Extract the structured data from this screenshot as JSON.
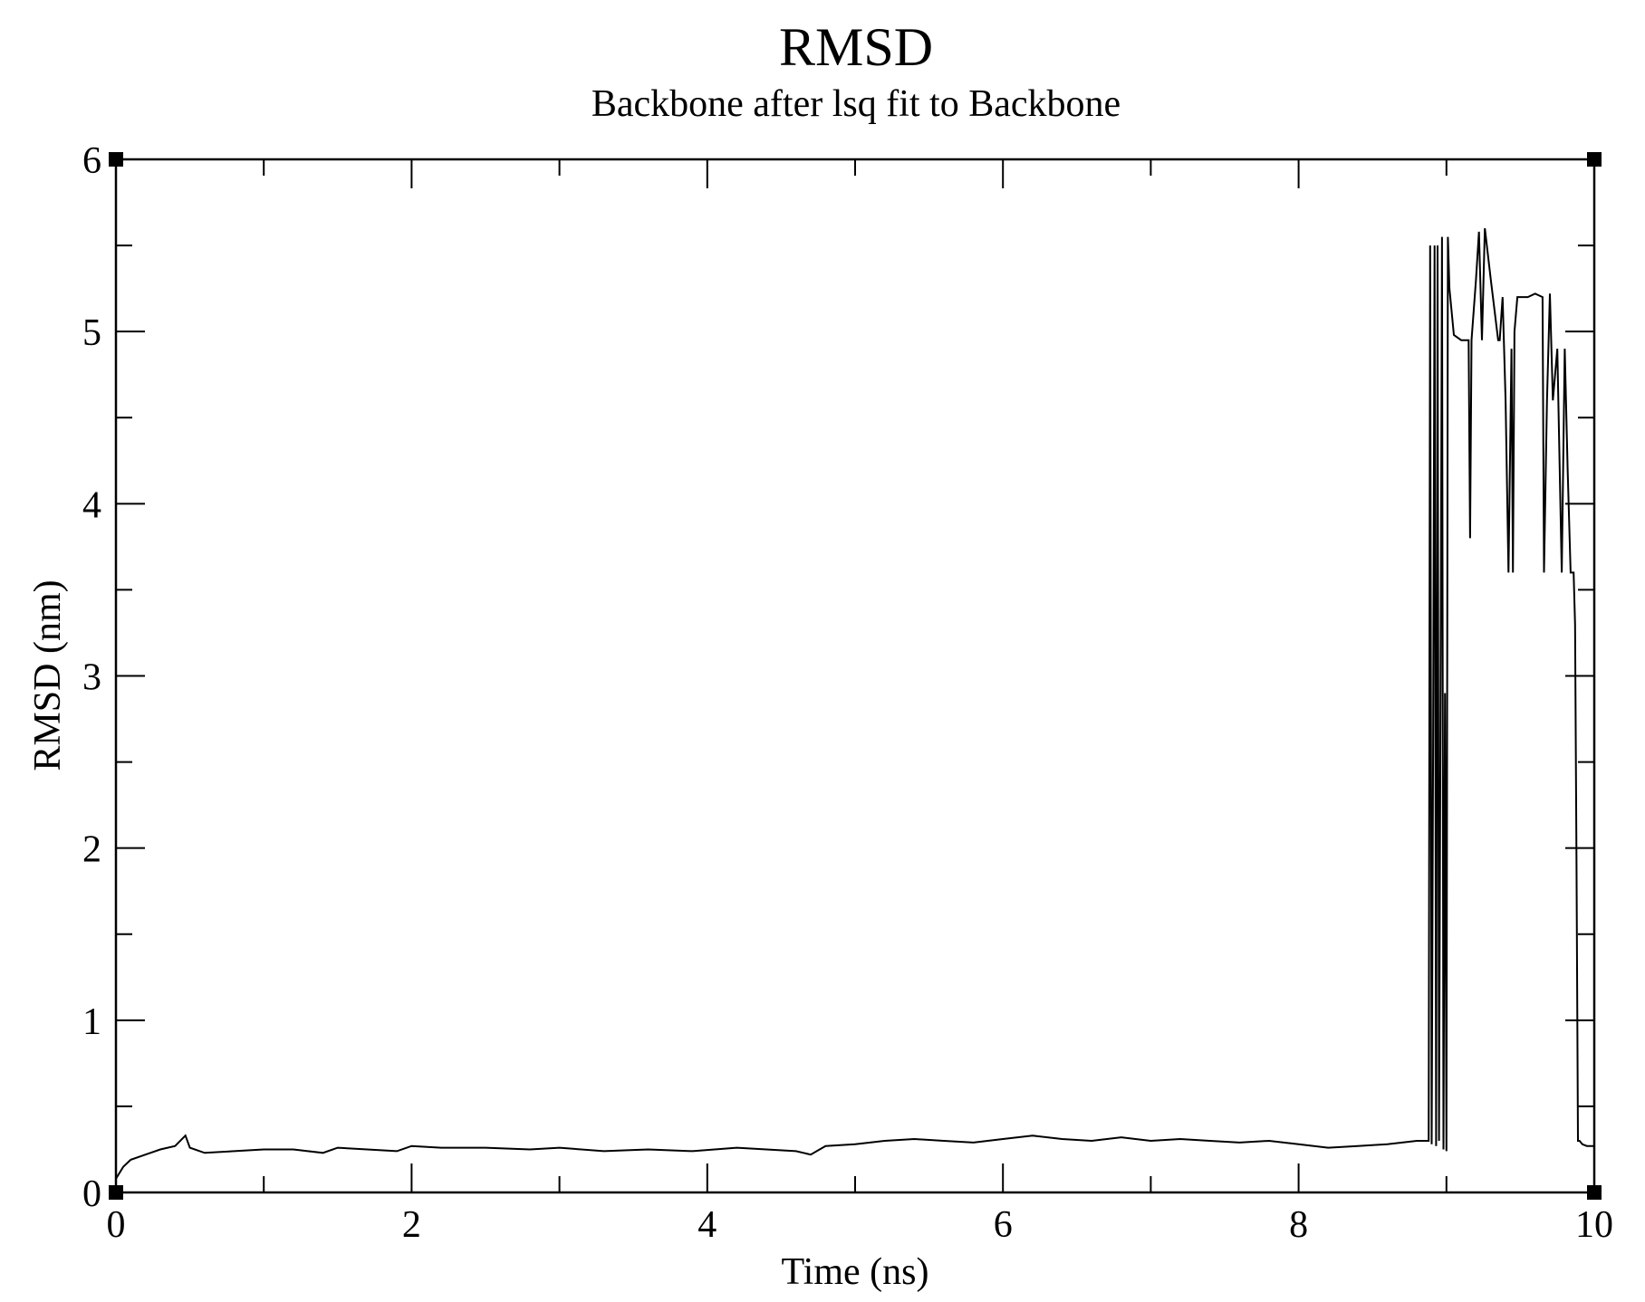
{
  "chart_data": {
    "type": "line",
    "title": "RMSD",
    "subtitle": "Backbone after lsq fit to Backbone",
    "xlabel": "Time (ns)",
    "ylabel": "RMSD (nm)",
    "xlim": [
      0,
      10
    ],
    "ylim": [
      0,
      6
    ],
    "x_ticks": [
      "0",
      "2",
      "4",
      "6",
      "8",
      "10"
    ],
    "y_ticks": [
      "0",
      "1",
      "2",
      "3",
      "4",
      "5",
      "6"
    ],
    "grid": false,
    "legend": "none",
    "colors": {
      "line": "#000000",
      "axes": "#000000",
      "background": "#ffffff"
    },
    "series": [
      {
        "x": [
          0.0,
          0.05,
          0.1,
          0.2,
          0.3,
          0.4,
          0.47,
          0.5,
          0.6,
          0.8,
          1.0,
          1.2,
          1.4,
          1.5,
          1.7,
          1.9,
          2.0,
          2.2,
          2.5,
          2.8,
          3.0,
          3.3,
          3.6,
          3.9,
          4.2,
          4.4,
          4.6,
          4.7,
          4.8,
          5.0,
          5.2,
          5.4,
          5.6,
          5.8,
          6.0,
          6.2,
          6.4,
          6.6,
          6.8,
          7.0,
          7.2,
          7.4,
          7.6,
          7.8,
          8.0,
          8.2,
          8.4,
          8.6,
          8.8,
          8.88,
          8.89,
          8.9,
          8.91,
          8.92,
          8.93,
          8.94,
          8.95,
          8.96,
          8.97,
          8.98,
          8.99,
          9.0,
          9.01,
          9.02,
          9.05,
          9.1,
          9.15,
          9.16,
          9.17,
          9.2,
          9.22,
          9.24,
          9.26,
          9.3,
          9.35,
          9.36,
          9.38,
          9.4,
          9.42,
          9.44,
          9.45,
          9.46,
          9.48,
          9.5,
          9.55,
          9.6,
          9.65,
          9.66,
          9.68,
          9.7,
          9.72,
          9.75,
          9.78,
          9.8,
          9.82,
          9.84,
          9.86,
          9.87,
          9.88,
          9.89,
          9.9,
          9.92,
          9.95,
          9.98,
          10.0
        ],
        "y": [
          0.08,
          0.15,
          0.19,
          0.22,
          0.25,
          0.27,
          0.33,
          0.26,
          0.23,
          0.24,
          0.25,
          0.25,
          0.23,
          0.26,
          0.25,
          0.24,
          0.27,
          0.26,
          0.26,
          0.25,
          0.26,
          0.24,
          0.25,
          0.24,
          0.26,
          0.25,
          0.24,
          0.22,
          0.27,
          0.28,
          0.3,
          0.31,
          0.3,
          0.29,
          0.31,
          0.33,
          0.31,
          0.3,
          0.32,
          0.3,
          0.31,
          0.3,
          0.29,
          0.3,
          0.28,
          0.26,
          0.27,
          0.28,
          0.3,
          0.3,
          5.5,
          0.28,
          2.6,
          5.5,
          0.27,
          5.5,
          0.3,
          2.9,
          5.55,
          0.25,
          2.9,
          0.24,
          5.55,
          5.25,
          4.98,
          4.95,
          4.95,
          3.8,
          4.95,
          5.3,
          5.58,
          4.95,
          5.6,
          5.3,
          4.95,
          4.95,
          5.2,
          4.6,
          3.6,
          4.9,
          3.6,
          5.0,
          5.2,
          5.2,
          5.2,
          5.22,
          5.2,
          3.6,
          4.6,
          5.22,
          4.6,
          4.9,
          3.6,
          4.9,
          4.2,
          3.6,
          3.6,
          3.3,
          1.9,
          0.3,
          0.3,
          0.28,
          0.27,
          0.27,
          0.27
        ]
      }
    ]
  }
}
